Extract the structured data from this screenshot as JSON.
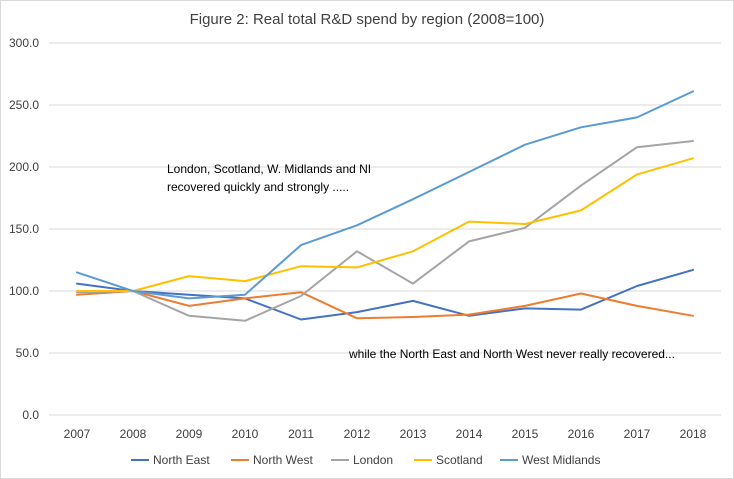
{
  "chart_data": {
    "type": "line",
    "title": "Figure 2: Real total R&D spend by region (2008=100)",
    "xlabel": "",
    "ylabel": "",
    "categories": [
      "2007",
      "2008",
      "2009",
      "2010",
      "2011",
      "2012",
      "2013",
      "2014",
      "2015",
      "2016",
      "2017",
      "2018"
    ],
    "ylim": [
      0,
      300
    ],
    "yticks": [
      "0.0",
      "50.0",
      "100.0",
      "150.0",
      "200.0",
      "250.0",
      "300.0"
    ],
    "grid": true,
    "legend_position": "bottom",
    "series": [
      {
        "name": "North East",
        "color": "#4472C4",
        "values": [
          106,
          100,
          97,
          94,
          77,
          83,
          92,
          80,
          86,
          85,
          104,
          117
        ]
      },
      {
        "name": "North West",
        "color": "#ED7D31",
        "values": [
          97,
          100,
          88,
          94,
          99,
          78,
          79,
          81,
          88,
          98,
          88,
          80
        ]
      },
      {
        "name": "London",
        "color": "#A5A5A5",
        "values": [
          99,
          100,
          80,
          76,
          96,
          132,
          106,
          140,
          151,
          185,
          216,
          221
        ]
      },
      {
        "name": "Scotland",
        "color": "#FFC000",
        "values": [
          100,
          100,
          112,
          108,
          120,
          119,
          132,
          156,
          154,
          165,
          194,
          207
        ]
      },
      {
        "name": "West Midlands",
        "color": "#5B9BD5",
        "values": [
          115,
          100,
          94,
          97,
          137,
          153,
          174,
          196,
          218,
          232,
          240,
          261
        ]
      }
    ],
    "annotations": [
      {
        "lines": [
          "London, Scotland, W. Midlands and NI",
          "recovered quickly and strongly ....."
        ]
      },
      {
        "lines": [
          "while the North East and North West never really recovered..."
        ]
      }
    ]
  }
}
